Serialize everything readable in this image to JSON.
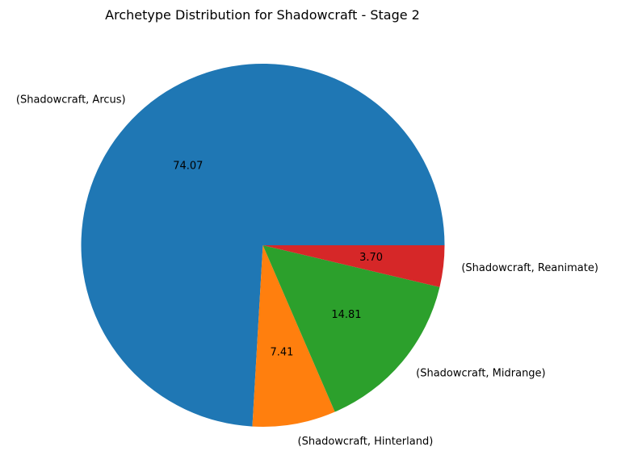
{
  "chart_data": {
    "type": "pie",
    "title": "Archetype Distribution for Shadowcraft - Stage 2",
    "categories": [
      "(Shadowcraft, Arcus)",
      "(Shadowcraft, Hinterland)",
      "(Shadowcraft, Midrange)",
      "(Shadowcraft, Reanimate)"
    ],
    "values": [
      74.07,
      7.41,
      14.81,
      3.7
    ],
    "value_labels": [
      "74.07",
      "7.41",
      "14.81",
      "3.70"
    ],
    "colors": [
      "#1f77b4",
      "#ff7f0e",
      "#2ca02c",
      "#d62728"
    ],
    "start_angle_deg": 0,
    "direction": "counterclockwise",
    "legend": "none"
  }
}
